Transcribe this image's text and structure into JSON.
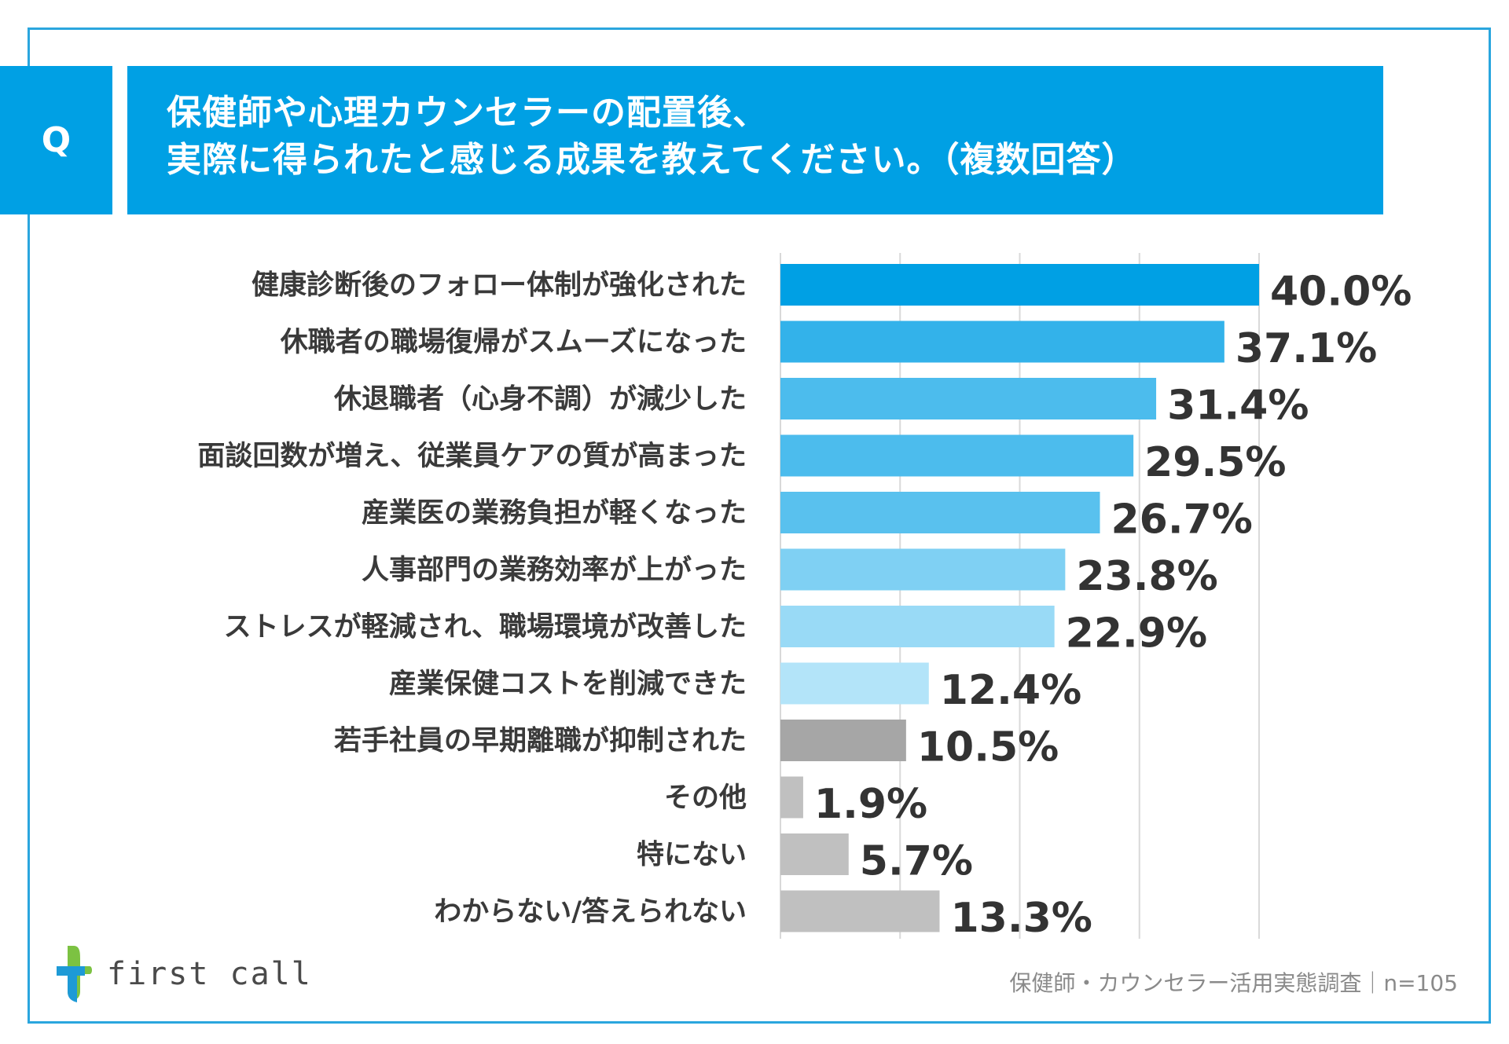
{
  "header": {
    "q_label": "Q",
    "title_line1": "保健師や心理カウンセラーの配置後、",
    "title_line2": "実際に得られたと感じる成果を教えてください。（複数回答）"
  },
  "colors": {
    "frame": "#2aa6de",
    "header_bg": "#00a0e4",
    "grid": "#d9d9d9"
  },
  "chart_data": {
    "type": "bar",
    "orientation": "horizontal",
    "unit": "%",
    "xlim": [
      0,
      40
    ],
    "gridlines": [
      0,
      10,
      20,
      30,
      40
    ],
    "categories": [
      "健康診断後のフォロー体制が強化された",
      "休職者の職場復帰がスムーズになった",
      "休退職者（心身不調）が減少した",
      "面談回数が増え、従業員ケアの質が高まった",
      "産業医の業務負担が軽くなった",
      "人事部門の業務効率が上がった",
      "ストレスが軽減され、職場環境が改善した",
      "産業保健コストを削減できた",
      "若手社員の早期離職が抑制された",
      "その他",
      "特にない",
      "わからない/答えられない"
    ],
    "values": [
      40.0,
      37.1,
      31.4,
      29.5,
      26.7,
      23.8,
      22.9,
      12.4,
      10.5,
      1.9,
      5.7,
      13.3
    ],
    "labels": [
      "40.0%",
      "37.1%",
      "31.4%",
      "29.5%",
      "26.7%",
      "23.8%",
      "22.9%",
      "12.4%",
      "10.5%",
      "1.9%",
      "5.7%",
      "13.3%"
    ],
    "bar_colors": [
      "#00a0e4",
      "#33b2ea",
      "#4cbced",
      "#4cbced",
      "#59c1ee",
      "#7fd0f3",
      "#99daf6",
      "#b3e4f9",
      "#a6a6a6",
      "#c0c0c0",
      "#c0c0c0",
      "#c0c0c0"
    ]
  },
  "logo": {
    "text": "first call"
  },
  "footer": {
    "text": "保健師・カウンセラー活用実態調査｜n=105"
  }
}
